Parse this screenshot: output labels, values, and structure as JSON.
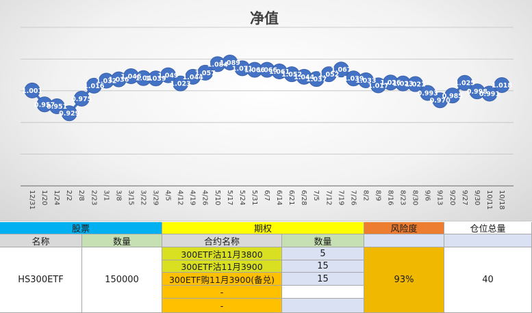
{
  "chart_data": {
    "type": "line",
    "title": "净值",
    "categories": [
      "12/31",
      "1/20",
      "1/24",
      "2/2",
      "2/8",
      "2/23",
      "3/1",
      "3/8",
      "3/15",
      "3/22",
      "3/29",
      "4/5",
      "4/12",
      "4/19",
      "4/26",
      "5/10",
      "5/17",
      "5/24",
      "5/31",
      "6/7",
      "6/14",
      "6/21",
      "6/28",
      "7/5",
      "7/12",
      "7/19",
      "7/26",
      "8/2",
      "8/9",
      "8/16",
      "8/23",
      "8/30",
      "9/6",
      "9/13",
      "9/20",
      "9/27",
      "9/30",
      "10/11",
      "10/18"
    ],
    "values": [
      1.001,
      0.957,
      0.951,
      0.929,
      0.975,
      1.016,
      1.032,
      1.036,
      1.046,
      1.04,
      1.039,
      1.049,
      1.023,
      1.044,
      1.057,
      1.084,
      1.089,
      1.071,
      1.066,
      1.066,
      1.061,
      1.052,
      1.044,
      1.037,
      1.052,
      1.067,
      1.039,
      1.033,
      1.017,
      1.026,
      1.023,
      1.021,
      0.993,
      0.97,
      0.985,
      1.025,
      0.998,
      0.991,
      1.018
    ],
    "labels": [
      "1.001",
      "0.957",
      "0.951",
      "0.929",
      "0.975",
      "1.016",
      "1.032",
      "1.036",
      "1.046",
      "1.04",
      "1.039",
      "1.049",
      "1.023",
      "1.044",
      "1.057",
      "1.084",
      "1.089",
      "1.071",
      "1.066",
      "1.066",
      "1.061",
      "1.052",
      "1.044",
      "1.037",
      "1.052",
      "1.067",
      "1.039",
      "1.033",
      "1.017",
      "1.026",
      "1.023",
      "1.021",
      "0.993",
      "0.970",
      "0.985",
      "1.025",
      "0.998",
      "0.991",
      "1.018"
    ],
    "ylim": [
      0.7,
      1.2
    ],
    "grid": true,
    "line_color": "#4472C4",
    "marker_color": "#4472C4"
  },
  "table": {
    "stock_header": "股票",
    "option_header": "期权",
    "risk_header": "风险度",
    "position_header": "仓位总量",
    "col_name": "名称",
    "col_qty": "数量",
    "col_contract": "合约名称",
    "col_qty2": "数量",
    "stock_name": "HS300ETF",
    "stock_qty": "150000",
    "contracts": [
      {
        "name": "300ETF沽11月3800",
        "qty": "5"
      },
      {
        "name": "300ETF沽11月3900",
        "qty": "15"
      },
      {
        "name": "300ETF购11月3900(备兑)",
        "qty": "15"
      },
      {
        "name": "-",
        "qty": ""
      },
      {
        "name": "-",
        "qty": ""
      }
    ],
    "risk_value": "93%",
    "position_value": "40",
    "colors": {
      "stock_header": "#00B0F0",
      "option_header": "#FFFF00",
      "risk_header": "#ED7D31",
      "position_header": "#FFFFFF",
      "subheader_gray": "#D9D9D9",
      "subheader_green": "#C6E0B4",
      "contract_green": "#D9E021",
      "contract_orange": "#FFC000",
      "qty_blue": "#D9E1F2",
      "risk_gold": "#F0B800"
    }
  }
}
